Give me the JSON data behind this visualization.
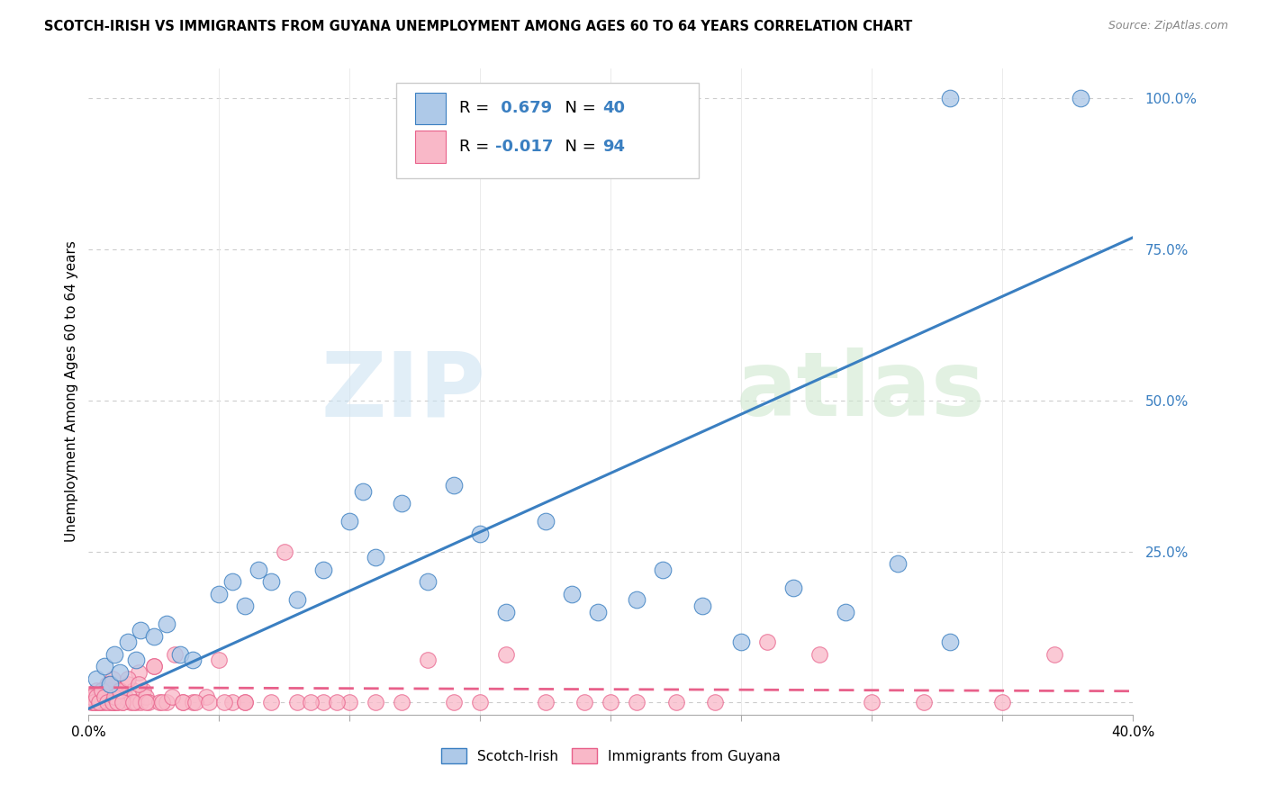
{
  "title": "SCOTCH-IRISH VS IMMIGRANTS FROM GUYANA UNEMPLOYMENT AMONG AGES 60 TO 64 YEARS CORRELATION CHART",
  "source": "Source: ZipAtlas.com",
  "ylabel": "Unemployment Among Ages 60 to 64 years",
  "xmin": 0.0,
  "xmax": 0.4,
  "ymin": -0.02,
  "ymax": 1.05,
  "xtick_positions": [
    0.0,
    0.05,
    0.1,
    0.15,
    0.2,
    0.25,
    0.3,
    0.35,
    0.4
  ],
  "xtick_labels": [
    "0.0%",
    "",
    "",
    "",
    "",
    "",
    "",
    "",
    "40.0%"
  ],
  "ytick_positions": [
    0.0,
    0.25,
    0.5,
    0.75,
    1.0
  ],
  "ytick_labels": [
    "",
    "25.0%",
    "50.0%",
    "75.0%",
    "100.0%"
  ],
  "grid_color": "#cccccc",
  "blue_fill": "#aec9e8",
  "blue_edge": "#3a7fc1",
  "blue_line": "#3a7fc1",
  "pink_fill": "#f9b8c8",
  "pink_edge": "#e8608a",
  "pink_line": "#e8608a",
  "blue_line_slope": 1.95,
  "blue_line_intercept": -0.01,
  "pink_line_slope": -0.015,
  "pink_line_intercept": 0.025,
  "si_x": [
    0.003,
    0.006,
    0.008,
    0.01,
    0.012,
    0.015,
    0.018,
    0.02,
    0.025,
    0.03,
    0.035,
    0.04,
    0.05,
    0.055,
    0.06,
    0.065,
    0.07,
    0.08,
    0.09,
    0.1,
    0.105,
    0.11,
    0.12,
    0.13,
    0.14,
    0.15,
    0.16,
    0.175,
    0.185,
    0.195,
    0.21,
    0.22,
    0.235,
    0.25,
    0.27,
    0.29,
    0.31,
    0.33,
    0.33,
    0.38
  ],
  "si_y": [
    0.04,
    0.06,
    0.03,
    0.08,
    0.05,
    0.1,
    0.07,
    0.12,
    0.11,
    0.13,
    0.08,
    0.07,
    0.18,
    0.2,
    0.16,
    0.22,
    0.2,
    0.17,
    0.22,
    0.3,
    0.35,
    0.24,
    0.33,
    0.2,
    0.36,
    0.28,
    0.15,
    0.3,
    0.18,
    0.15,
    0.17,
    0.22,
    0.16,
    0.1,
    0.19,
    0.15,
    0.23,
    0.1,
    1.0,
    1.0
  ],
  "gy_x": [
    0.001,
    0.002,
    0.002,
    0.003,
    0.003,
    0.004,
    0.004,
    0.005,
    0.005,
    0.006,
    0.006,
    0.007,
    0.008,
    0.008,
    0.009,
    0.009,
    0.01,
    0.01,
    0.011,
    0.012,
    0.013,
    0.014,
    0.015,
    0.016,
    0.017,
    0.018,
    0.019,
    0.02,
    0.021,
    0.022,
    0.023,
    0.025,
    0.027,
    0.03,
    0.033,
    0.036,
    0.04,
    0.045,
    0.05,
    0.055,
    0.06,
    0.07,
    0.08,
    0.09,
    0.1,
    0.11,
    0.12,
    0.13,
    0.14,
    0.15,
    0.16,
    0.175,
    0.19,
    0.2,
    0.21,
    0.225,
    0.24,
    0.26,
    0.28,
    0.3,
    0.32,
    0.35,
    0.37,
    0.001,
    0.002,
    0.003,
    0.004,
    0.005,
    0.006,
    0.007,
    0.008,
    0.009,
    0.01,
    0.011,
    0.012,
    0.013,
    0.015,
    0.017,
    0.019,
    0.022,
    0.025,
    0.028,
    0.032,
    0.036,
    0.041,
    0.046,
    0.052,
    0.06,
    0.075,
    0.085,
    0.095
  ],
  "gy_y": [
    0.0,
    0.0,
    0.01,
    0.0,
    0.02,
    0.0,
    0.01,
    0.0,
    0.02,
    0.0,
    0.01,
    0.03,
    0.0,
    0.02,
    0.0,
    0.04,
    0.0,
    0.01,
    0.0,
    0.02,
    0.0,
    0.01,
    0.03,
    0.0,
    0.02,
    0.0,
    0.05,
    0.0,
    0.02,
    0.01,
    0.0,
    0.06,
    0.0,
    0.0,
    0.08,
    0.0,
    0.0,
    0.01,
    0.07,
    0.0,
    0.0,
    0.0,
    0.0,
    0.0,
    0.0,
    0.0,
    0.0,
    0.07,
    0.0,
    0.0,
    0.08,
    0.0,
    0.0,
    0.0,
    0.0,
    0.0,
    0.0,
    0.1,
    0.08,
    0.0,
    0.0,
    0.0,
    0.08,
    0.01,
    0.0,
    0.01,
    0.0,
    0.02,
    0.01,
    0.0,
    0.03,
    0.0,
    0.01,
    0.0,
    0.02,
    0.0,
    0.04,
    0.0,
    0.03,
    0.0,
    0.06,
    0.0,
    0.01,
    0.0,
    0.0,
    0.0,
    0.0,
    0.0,
    0.25,
    0.0,
    0.0
  ]
}
